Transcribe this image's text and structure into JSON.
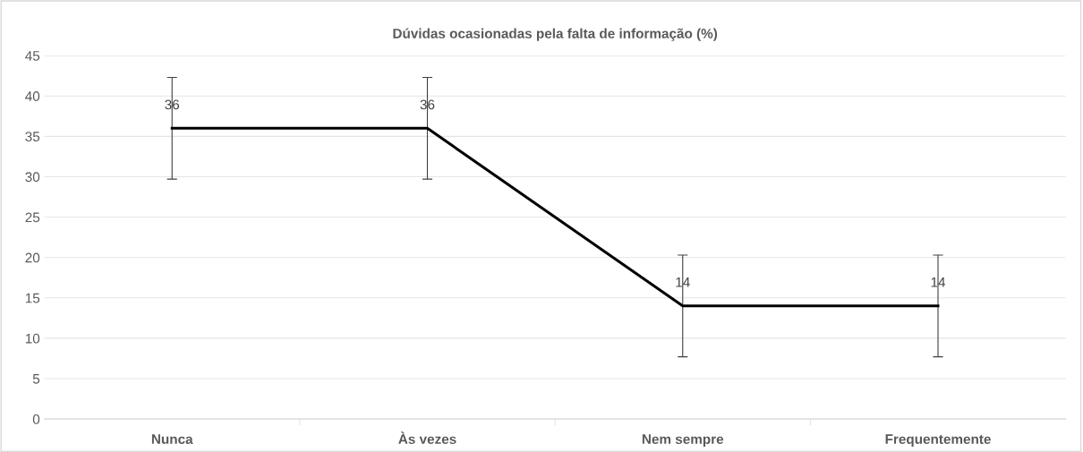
{
  "chart_data": {
    "type": "line",
    "title": "Dúvidas ocasionadas pela falta de informação (%)",
    "categories": [
      "Nunca",
      "Às vezes",
      "Nem sempre",
      "Frequentemente"
    ],
    "series": [
      {
        "color": "#000000",
        "values": [
          36,
          36,
          14,
          14
        ],
        "errors": [
          6.3,
          6.3,
          6.3,
          6.3
        ]
      }
    ],
    "ylim": [
      0,
      45
    ],
    "yticks": [
      0,
      5,
      10,
      15,
      20,
      25,
      30,
      35,
      40,
      45
    ],
    "grid": "y",
    "data_labels": true,
    "legend": false,
    "marker": "none",
    "line_style": "solid"
  }
}
